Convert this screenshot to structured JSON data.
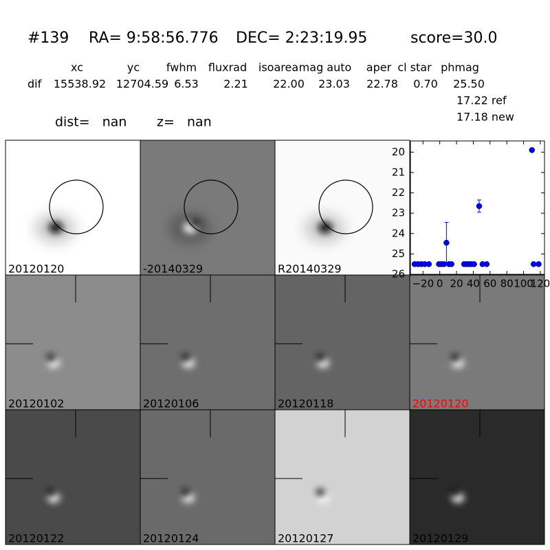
{
  "header": {
    "id": "#139",
    "ra": "RA= 9:58:56.776",
    "dec": "DEC= 2:23:19.95",
    "score": "score=30.0"
  },
  "table": {
    "columns": [
      "xc",
      "yc",
      "fwhm",
      "fluxrad",
      "isoarea",
      "mag auto",
      "aper",
      "cl star",
      "phmag"
    ],
    "row_label": "dif",
    "row": [
      "15538.92",
      "12704.59",
      "6.53",
      "2.21",
      "22.00",
      "23.03",
      "22.78",
      "0.70",
      "25.50"
    ],
    "extra": [
      "17.22 ref",
      "17.18 new"
    ]
  },
  "distance": {
    "dist": "dist=   nan",
    "z": "z=   nan"
  },
  "stamps": [
    {
      "label": "20120120",
      "color": "#000000"
    },
    {
      "label": "-20140329",
      "color": "#000000"
    },
    {
      "label": "R20140329",
      "color": "#000000"
    },
    {
      "label": "20120102",
      "color": "#000000"
    },
    {
      "label": "20120106",
      "color": "#000000"
    },
    {
      "label": "20120118",
      "color": "#000000"
    },
    {
      "label": "20120120",
      "color": "#ff0000"
    },
    {
      "label": "20120122",
      "color": "#000000"
    },
    {
      "label": "20120124",
      "color": "#000000"
    },
    {
      "label": "20120127",
      "color": "#000000"
    },
    {
      "label": "20120129",
      "color": "#000000"
    }
  ],
  "light_curve": {
    "type": "scatter",
    "color": "#0000ff",
    "y_inverted": true,
    "x": [
      -30,
      -26,
      -22,
      -18,
      -13,
      -1,
      2,
      5,
      8,
      11,
      14,
      29,
      32,
      35,
      38,
      41,
      47,
      51,
      56,
      110,
      112,
      118
    ],
    "y": [
      25.5,
      25.5,
      25.5,
      25.5,
      25.5,
      25.5,
      25.5,
      25.5,
      24.45,
      25.5,
      25.5,
      25.5,
      25.5,
      25.5,
      25.5,
      25.5,
      22.65,
      25.5,
      25.5,
      19.9,
      25.5,
      25.5
    ],
    "err": [
      null,
      null,
      null,
      null,
      null,
      null,
      null,
      null,
      1.0,
      null,
      null,
      null,
      null,
      null,
      null,
      null,
      0.3,
      null,
      null,
      null,
      null,
      null
    ],
    "xlim": [
      -35,
      125
    ],
    "ylim": [
      26,
      19.45
    ],
    "xticks": [
      {
        "value": -20,
        "label": "−20"
      },
      0,
      20,
      40,
      60,
      80,
      100,
      120
    ],
    "yticks": [
      20,
      21,
      22,
      23,
      24,
      25,
      26
    ]
  }
}
